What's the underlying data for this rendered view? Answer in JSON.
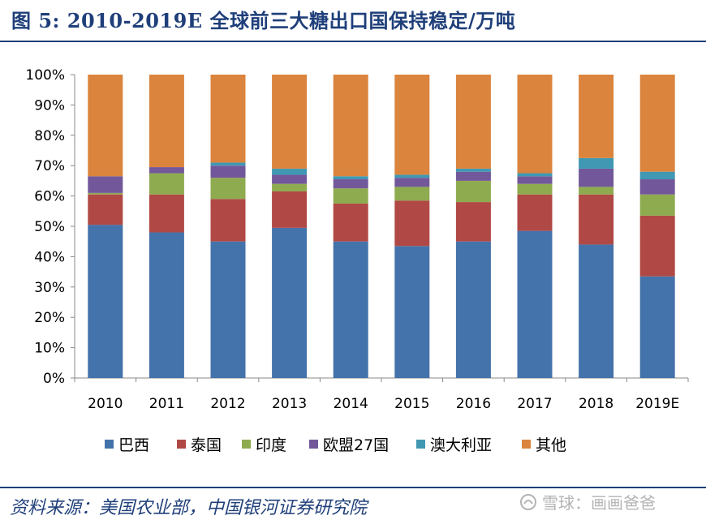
{
  "header": {
    "title": "图 5:   2010-2019E 全球前三大糖出口国保持稳定/万吨"
  },
  "footer": {
    "source": "资料来源：美国农业部，中国银河证券研究院",
    "watermark": "雪球：画画爸爸"
  },
  "colors": {
    "title": "#1f3f7a",
    "rule": "#1f3f7a",
    "series": [
      "#4472aa",
      "#b04945",
      "#8fab4f",
      "#72589a",
      "#4198b2",
      "#db843d"
    ]
  },
  "chart_data": {
    "type": "bar",
    "stacked": true,
    "percent": true,
    "categories": [
      "2010",
      "2011",
      "2012",
      "2013",
      "2014",
      "2015",
      "2016",
      "2017",
      "2018",
      "2019E"
    ],
    "series": [
      {
        "name": "巴西",
        "values": [
          50.5,
          48,
          45,
          49.5,
          45,
          43.5,
          45,
          48.5,
          44,
          33.5
        ]
      },
      {
        "name": "泰国",
        "values": [
          10,
          12.5,
          14,
          12,
          12.5,
          15,
          13,
          12,
          16.5,
          20
        ]
      },
      {
        "name": "印度",
        "values": [
          0.5,
          7,
          7,
          2.5,
          5,
          4.5,
          7,
          3.5,
          2.5,
          7
        ]
      },
      {
        "name": "欧盟27国",
        "values": [
          5.5,
          2,
          4,
          3,
          3,
          3,
          3,
          2.5,
          6,
          5
        ]
      },
      {
        "name": "澳大利亚",
        "values": [
          0,
          0,
          1,
          2,
          1,
          1,
          1,
          1,
          3.5,
          2.5
        ]
      },
      {
        "name": "其他",
        "values": [
          33.5,
          30.5,
          29,
          31,
          33.5,
          33,
          31,
          32.5,
          27.5,
          32
        ]
      }
    ],
    "ylim": [
      0,
      100
    ],
    "yticks": [
      "0%",
      "10%",
      "20%",
      "30%",
      "40%",
      "50%",
      "60%",
      "70%",
      "80%",
      "90%",
      "100%"
    ],
    "xlabel": "",
    "ylabel": "",
    "legend_position": "bottom",
    "grid": false
  }
}
